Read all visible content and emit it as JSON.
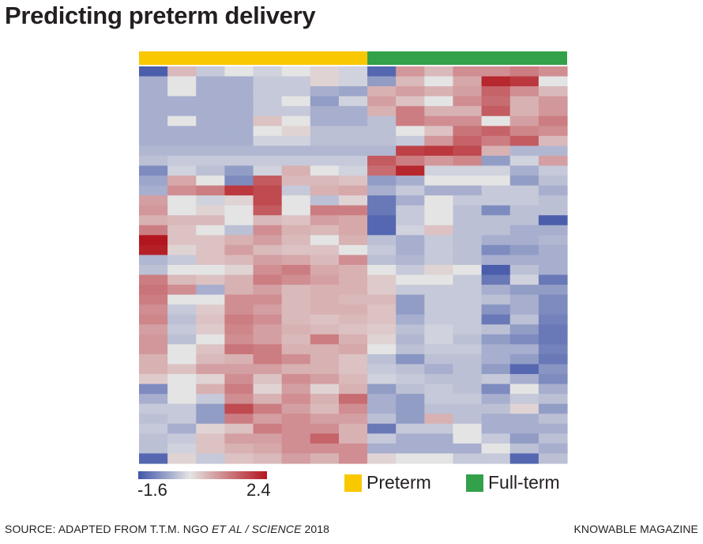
{
  "title": "Predicting preterm delivery",
  "legend": {
    "low_label": "-1.6",
    "high_label": "2.4",
    "groups": [
      {
        "label": "Preterm",
        "color": "#f9c800"
      },
      {
        "label": "Full-term",
        "color": "#33a04a"
      }
    ]
  },
  "source": {
    "prefix": "SOURCE: ADAPTED FROM T.T.M. NGO ",
    "italic": "ET AL / SCIENCE",
    "suffix": " 2018"
  },
  "publisher": "KNOWABLE MAGAZINE",
  "chart_data": {
    "type": "heatmap",
    "title": "Predicting preterm delivery",
    "color_scale": {
      "min": -1.6,
      "max": 2.4,
      "low_color": "#4055a8",
      "mid_color": "#e4e4e4",
      "high_color": "#b3161e"
    },
    "column_groups": [
      {
        "name": "Preterm",
        "columns": 8,
        "color": "#f9c800"
      },
      {
        "name": "Full-term",
        "columns": 7,
        "color": "#33a04a"
      }
    ],
    "n_rows": 40,
    "n_cols": 15,
    "values": [
      [
        -1.5,
        0.5,
        -0.3,
        0.0,
        -0.2,
        0.0,
        0.2,
        -0.2,
        -1.4,
        0.9,
        0.5,
        1.0,
        1.0,
        1.2,
        1.0
      ],
      [
        -0.6,
        0.0,
        -0.6,
        -0.6,
        -0.3,
        -0.3,
        0.2,
        -0.2,
        -0.8,
        0.5,
        0.0,
        0.7,
        2.2,
        2.0,
        0.0
      ],
      [
        -0.6,
        0.0,
        -0.6,
        -0.6,
        -0.3,
        -0.3,
        -0.6,
        -0.7,
        0.6,
        0.8,
        0.6,
        0.8,
        1.5,
        1.0,
        0.5
      ],
      [
        -0.6,
        -0.6,
        -0.6,
        -0.6,
        -0.3,
        0.0,
        -0.8,
        -0.2,
        0.8,
        0.4,
        0.0,
        1.0,
        1.4,
        0.6,
        0.9
      ],
      [
        -0.6,
        -0.6,
        -0.6,
        -0.6,
        -0.3,
        -0.3,
        -0.6,
        -0.6,
        0.6,
        1.2,
        0.6,
        0.6,
        1.6,
        0.6,
        0.9
      ],
      [
        -0.6,
        0.0,
        -0.6,
        -0.6,
        0.4,
        0.0,
        -0.6,
        -0.6,
        -0.4,
        1.2,
        1.0,
        1.0,
        0.0,
        0.8,
        1.2
      ],
      [
        -0.6,
        -0.6,
        -0.6,
        -0.6,
        0.0,
        0.2,
        -0.4,
        -0.4,
        -0.4,
        0.0,
        0.4,
        1.3,
        1.5,
        1.1,
        1.0
      ],
      [
        -0.6,
        -0.6,
        -0.6,
        -0.6,
        -0.2,
        -0.2,
        -0.4,
        -0.4,
        -0.4,
        -0.3,
        0.9,
        1.5,
        1.2,
        1.6,
        0.5
      ],
      [
        -0.5,
        -0.5,
        -0.5,
        -0.5,
        -0.5,
        -0.5,
        -0.5,
        -0.5,
        -0.5,
        1.9,
        2.0,
        1.8,
        0.6,
        -0.5,
        -0.5
      ],
      [
        -0.4,
        -0.3,
        -0.3,
        -0.3,
        -0.3,
        -0.3,
        -0.3,
        -0.3,
        1.6,
        1.2,
        0.9,
        1.1,
        -0.8,
        -0.2,
        0.8
      ],
      [
        -1.0,
        -0.2,
        -0.4,
        -0.8,
        -0.2,
        0.6,
        0.0,
        -0.2,
        1.4,
        2.2,
        -0.2,
        -0.2,
        -0.2,
        -0.6,
        -0.3
      ],
      [
        -0.7,
        0.7,
        0.0,
        -1.0,
        1.6,
        0.5,
        0.5,
        0.4,
        -0.8,
        -0.6,
        0.0,
        0.0,
        0.0,
        -0.8,
        -0.4
      ],
      [
        -0.6,
        1.0,
        1.2,
        2.0,
        1.8,
        -0.3,
        0.6,
        0.7,
        -0.6,
        -0.3,
        -0.6,
        -0.6,
        -0.3,
        -0.3,
        -0.6
      ],
      [
        0.8,
        0.0,
        -0.2,
        0.2,
        1.8,
        0.0,
        -0.4,
        0.2,
        -1.2,
        -0.6,
        0.0,
        -0.3,
        -0.3,
        -0.3,
        -0.4
      ],
      [
        0.9,
        0.0,
        0.2,
        0.0,
        1.6,
        0.0,
        1.2,
        1.2,
        -1.2,
        -0.3,
        0.0,
        -0.4,
        -1.0,
        -0.4,
        -0.4
      ],
      [
        0.6,
        0.5,
        0.5,
        0.0,
        0.5,
        0.4,
        0.8,
        0.7,
        -1.4,
        -0.3,
        0.0,
        -0.4,
        -0.4,
        -0.4,
        -1.5
      ],
      [
        1.2,
        0.4,
        0.0,
        -0.4,
        1.0,
        0.6,
        0.5,
        0.7,
        -1.4,
        -0.2,
        0.4,
        -0.4,
        -0.4,
        -0.6,
        -0.6
      ],
      [
        2.4,
        0.4,
        0.4,
        0.6,
        0.8,
        0.5,
        0.0,
        0.6,
        -0.4,
        -0.6,
        -0.3,
        -0.4,
        -0.6,
        -0.6,
        -0.5
      ],
      [
        2.3,
        0.2,
        0.4,
        0.8,
        0.5,
        0.4,
        0.4,
        0.0,
        -0.3,
        -0.6,
        -0.3,
        -0.4,
        -1.0,
        -0.8,
        -0.6
      ],
      [
        -0.5,
        -0.3,
        0.4,
        0.5,
        0.8,
        0.7,
        0.5,
        1.0,
        -0.4,
        -0.5,
        -0.3,
        -0.4,
        -0.6,
        -0.6,
        -0.6
      ],
      [
        -0.4,
        0.0,
        0.0,
        0.2,
        1.0,
        1.2,
        0.7,
        0.6,
        0.0,
        -0.3,
        0.2,
        0.0,
        -1.5,
        -0.4,
        -0.6
      ],
      [
        1.2,
        0.5,
        0.4,
        0.6,
        1.2,
        1.0,
        0.8,
        0.6,
        0.3,
        0.0,
        0.0,
        -0.3,
        -1.2,
        -0.2,
        -1.2
      ],
      [
        1.3,
        1.0,
        -0.6,
        0.6,
        0.8,
        0.5,
        0.6,
        0.6,
        0.3,
        -0.3,
        -0.3,
        -0.3,
        -0.6,
        -0.8,
        -0.8
      ],
      [
        1.2,
        0.0,
        0.0,
        1.0,
        1.0,
        0.5,
        0.6,
        0.5,
        0.5,
        -0.8,
        -0.3,
        -0.3,
        -0.4,
        -0.6,
        -1.0
      ],
      [
        1.0,
        -0.3,
        0.3,
        1.0,
        0.8,
        0.5,
        0.6,
        0.6,
        0.4,
        -0.8,
        -0.3,
        -0.3,
        -0.9,
        -0.6,
        -1.0
      ],
      [
        1.1,
        -0.4,
        0.4,
        1.2,
        1.0,
        0.5,
        0.4,
        0.5,
        0.4,
        -0.6,
        -0.3,
        -0.3,
        -1.2,
        -0.4,
        -1.1
      ],
      [
        0.8,
        -0.3,
        0.3,
        1.1,
        0.8,
        0.6,
        0.5,
        0.4,
        0.3,
        -0.4,
        -0.2,
        -0.3,
        -0.4,
        -0.8,
        -1.2
      ],
      [
        0.9,
        -0.4,
        0.0,
        1.0,
        0.8,
        0.5,
        1.2,
        0.6,
        0.2,
        -0.5,
        -0.2,
        -0.4,
        -0.8,
        -1.0,
        -1.2
      ],
      [
        0.9,
        0.0,
        0.4,
        1.3,
        1.2,
        0.6,
        0.6,
        0.7,
        0.0,
        -0.4,
        -0.3,
        -0.3,
        -0.6,
        -0.6,
        -1.1
      ],
      [
        0.6,
        0.0,
        0.5,
        0.6,
        1.2,
        1.0,
        0.6,
        0.4,
        -0.4,
        -0.9,
        -0.4,
        -0.4,
        -0.6,
        -0.8,
        -1.2
      ],
      [
        0.6,
        0.4,
        0.8,
        0.8,
        0.8,
        0.6,
        0.6,
        0.4,
        -0.3,
        -0.4,
        -0.6,
        -0.4,
        -0.8,
        -1.4,
        -0.9
      ],
      [
        0.3,
        0.0,
        0.2,
        1.0,
        0.4,
        1.0,
        0.8,
        0.5,
        -0.2,
        -0.3,
        -0.4,
        -0.4,
        -0.3,
        -0.6,
        -1.0
      ],
      [
        -1.0,
        0.0,
        0.6,
        1.2,
        0.2,
        0.8,
        0.2,
        0.6,
        -0.8,
        -0.4,
        -0.3,
        -0.4,
        -1.0,
        0.0,
        -0.6
      ],
      [
        -0.6,
        0.0,
        -0.3,
        1.0,
        0.6,
        1.0,
        0.6,
        1.4,
        -0.6,
        -0.8,
        -0.3,
        -0.3,
        -0.6,
        -0.3,
        -0.4
      ],
      [
        -0.3,
        -0.3,
        -0.8,
        1.8,
        1.2,
        0.8,
        0.5,
        1.0,
        -0.6,
        -0.8,
        -0.4,
        -0.4,
        -0.4,
        0.2,
        -0.8
      ],
      [
        -0.4,
        -0.3,
        -0.8,
        1.2,
        0.8,
        1.0,
        0.8,
        0.8,
        -0.4,
        -0.8,
        0.6,
        -0.4,
        -0.6,
        -0.6,
        -0.4
      ],
      [
        -0.3,
        -0.6,
        0.2,
        0.4,
        1.2,
        1.0,
        1.0,
        0.6,
        -1.2,
        -0.3,
        -0.3,
        0.0,
        -0.6,
        -0.6,
        -0.6
      ],
      [
        -0.4,
        -0.3,
        0.4,
        0.8,
        0.8,
        1.0,
        1.5,
        0.6,
        -0.3,
        -0.6,
        -0.6,
        0.0,
        -0.3,
        -0.8,
        -0.4
      ],
      [
        -0.4,
        -0.2,
        0.4,
        0.6,
        0.7,
        1.0,
        1.0,
        1.0,
        -0.6,
        -0.6,
        -0.6,
        -0.6,
        0.0,
        -0.4,
        -0.6
      ],
      [
        -1.4,
        0.2,
        -0.3,
        0.4,
        0.5,
        0.8,
        0.6,
        1.0,
        0.2,
        0.0,
        0.0,
        -0.3,
        -0.3,
        -1.4,
        -0.4
      ]
    ]
  }
}
